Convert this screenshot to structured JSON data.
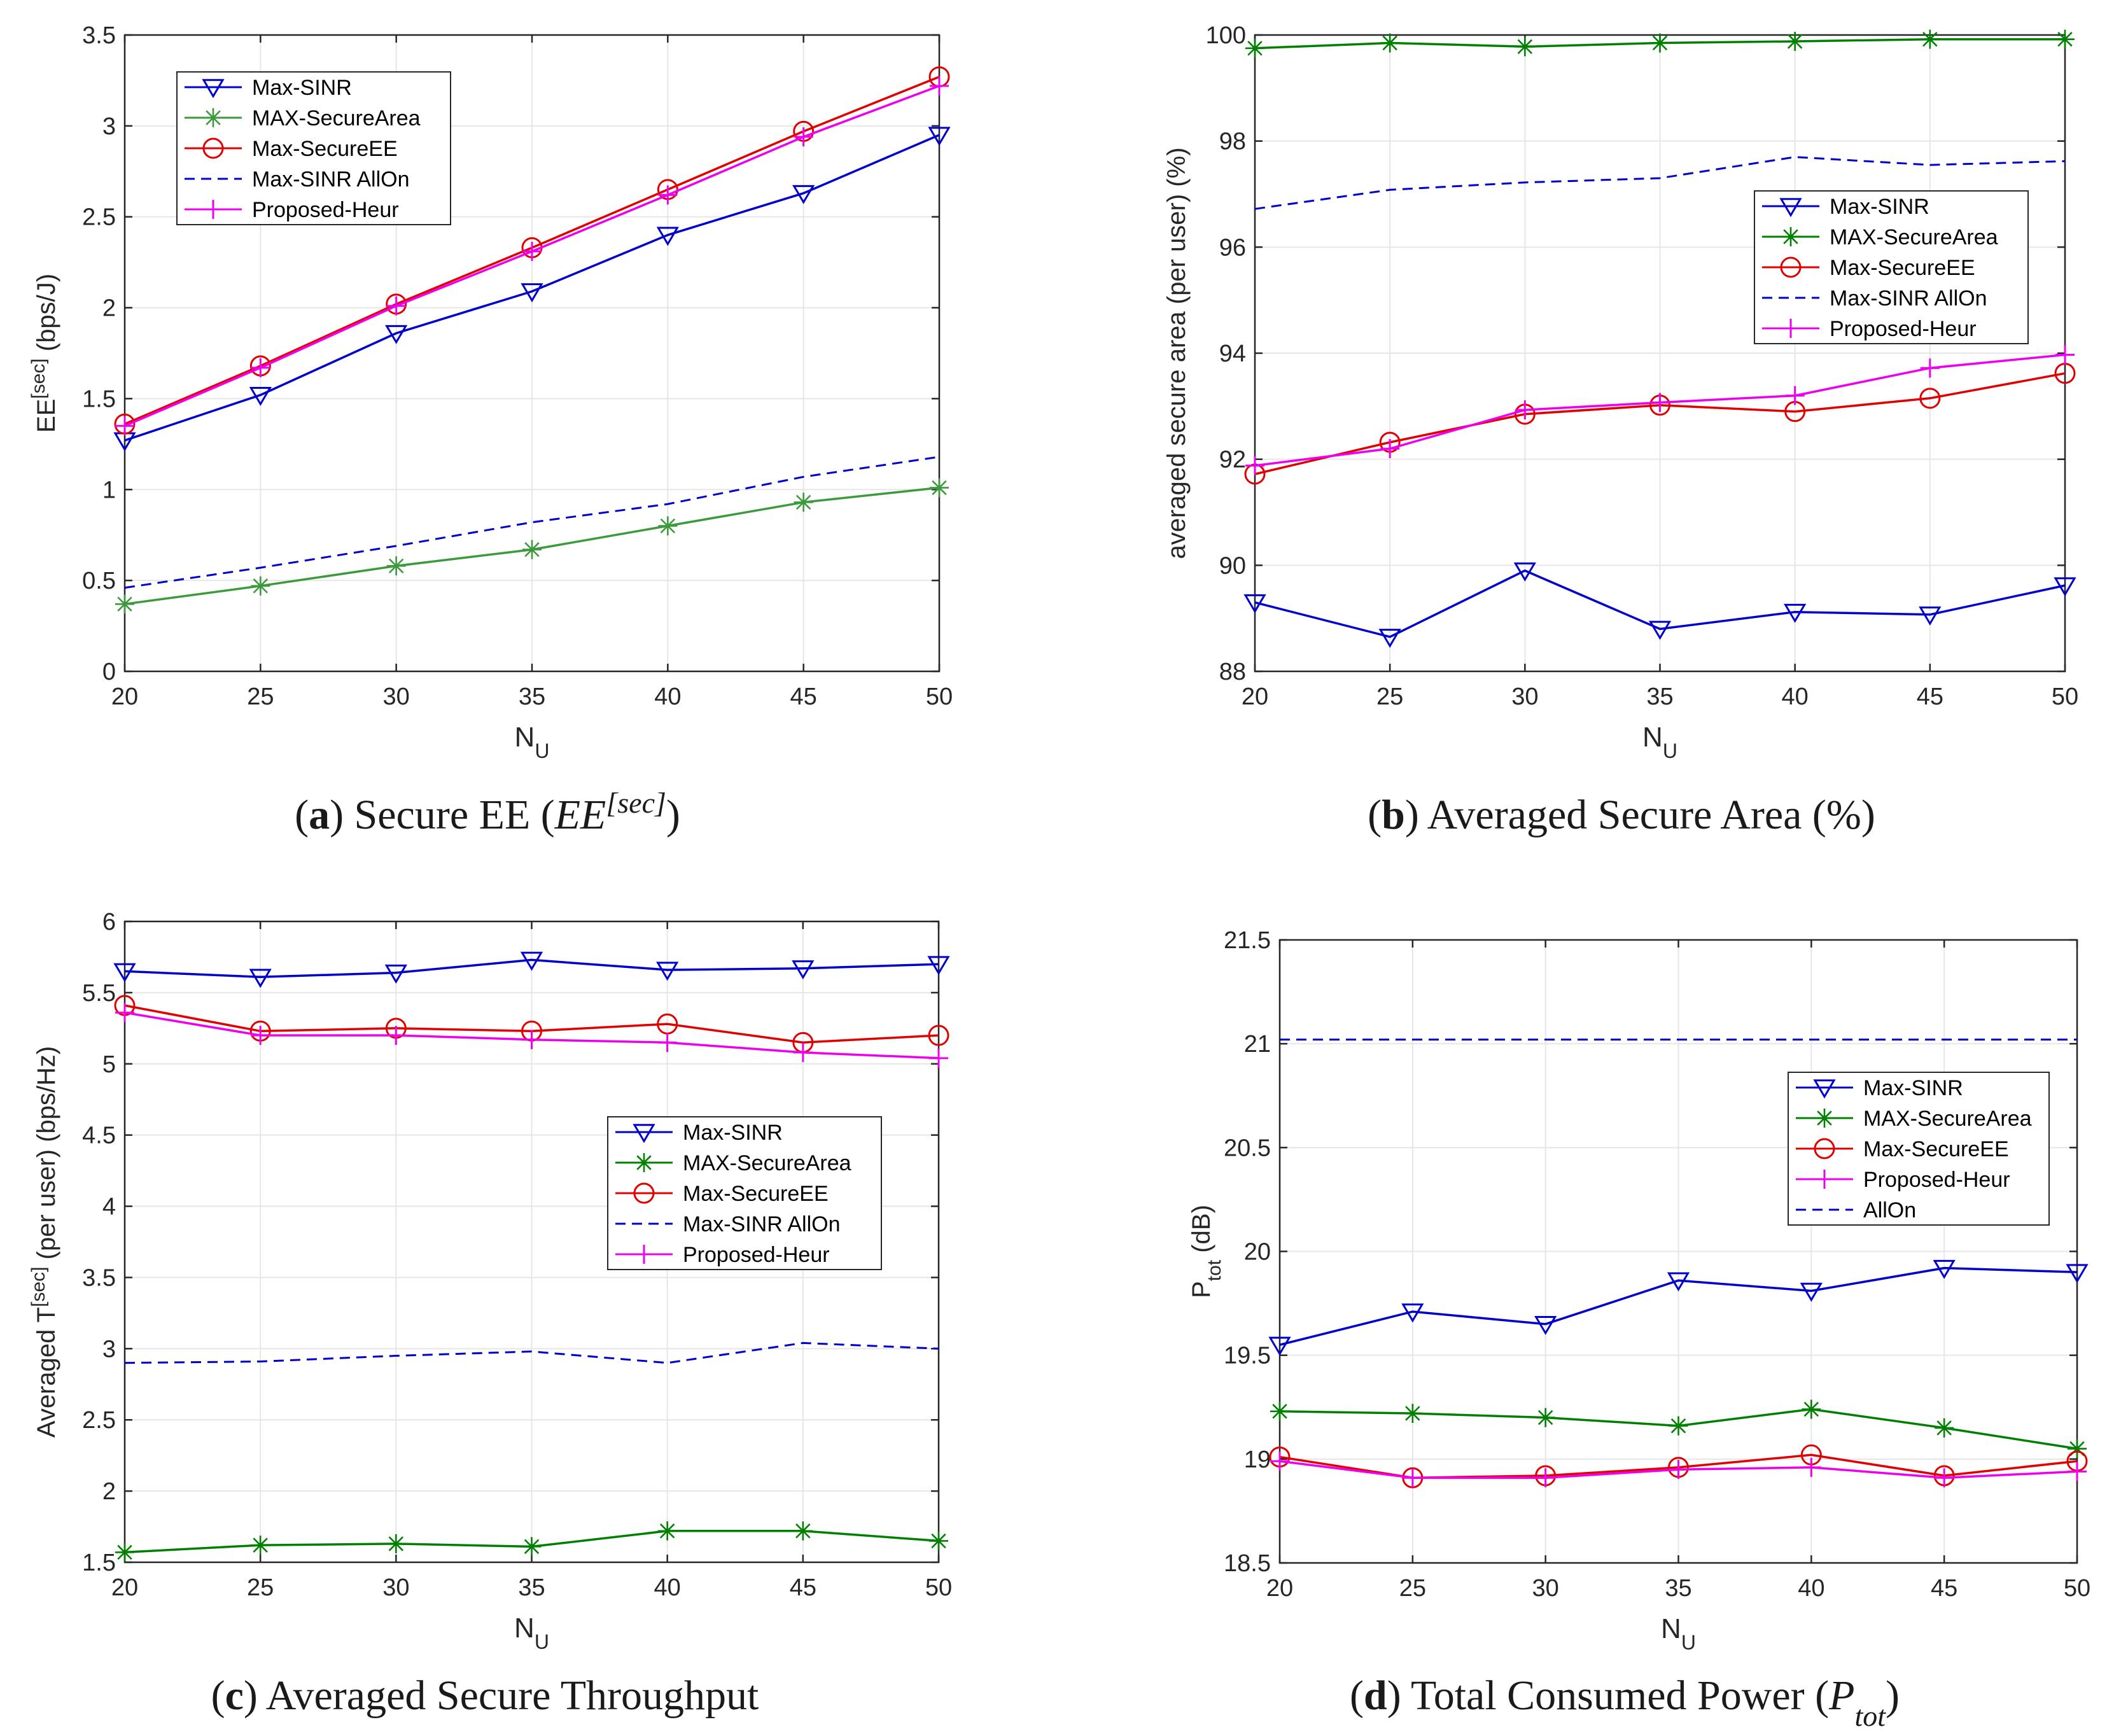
{
  "colors": {
    "blue": "#0000cc",
    "green": "#008000",
    "green_light": "#3c9a3c",
    "red": "#e00000",
    "magenta": "#ee00ee",
    "grid": "#e6e6e6",
    "axis": "#262626"
  },
  "chart_data": [
    {
      "id": "a",
      "type": "line",
      "caption": {
        "letter": "a",
        "text": "Secure EE (",
        "math_base": "EE",
        "math_sup": "[sec]",
        "close": ")"
      },
      "xlabel": "N",
      "xlabel_sub": "U",
      "ylabel": "EE",
      "ylabel_sup": "[sec]",
      "ylabel_rest": " (bps/J)",
      "x": [
        20,
        25,
        30,
        35,
        40,
        45,
        50
      ],
      "xlim": [
        20,
        50
      ],
      "ylim": [
        0,
        3.5
      ],
      "xticks": [
        "20",
        "25",
        "30",
        "35",
        "40",
        "45",
        "50"
      ],
      "yticks": [
        "0",
        "0.5",
        "1",
        "1.5",
        "2",
        "2.5",
        "3",
        "3.5"
      ],
      "ytick_values": [
        0,
        0.5,
        1,
        1.5,
        2,
        2.5,
        3,
        3.5
      ],
      "grid": true,
      "legend_position": "top-left",
      "series": [
        {
          "name": "Max-SINR",
          "color": "blue",
          "marker": "triangle-down",
          "dash": "solid",
          "values": [
            1.27,
            1.52,
            1.86,
            2.09,
            2.4,
            2.63,
            2.95
          ]
        },
        {
          "name": "MAX-SecureArea",
          "color": "green_light",
          "marker": "asterisk",
          "dash": "solid",
          "values": [
            0.37,
            0.47,
            0.58,
            0.67,
            0.8,
            0.93,
            1.01
          ]
        },
        {
          "name": "Max-SecureEE",
          "color": "red",
          "marker": "circle",
          "dash": "solid",
          "values": [
            1.36,
            1.68,
            2.02,
            2.33,
            2.65,
            2.97,
            3.27
          ]
        },
        {
          "name": "Max-SINR AllOn",
          "color": "blue",
          "marker": "none",
          "dash": "dashed",
          "values": [
            0.46,
            0.57,
            0.69,
            0.82,
            0.92,
            1.07,
            1.18
          ]
        },
        {
          "name": "Proposed-Heur",
          "color": "magenta",
          "marker": "plus",
          "dash": "solid",
          "values": [
            1.35,
            1.67,
            2.01,
            2.31,
            2.62,
            2.94,
            3.22
          ]
        }
      ]
    },
    {
      "id": "b",
      "type": "line",
      "caption": {
        "letter": "b",
        "text": "Averaged Secure Area (%)"
      },
      "xlabel": "N",
      "xlabel_sub": "U",
      "ylabel": "averaged secure area (per user) (%)",
      "x": [
        20,
        25,
        30,
        35,
        40,
        45,
        50
      ],
      "xlim": [
        20,
        50
      ],
      "ylim": [
        88,
        100
      ],
      "xticks": [
        "20",
        "25",
        "30",
        "35",
        "40",
        "45",
        "50"
      ],
      "yticks": [
        "88",
        "90",
        "92",
        "94",
        "96",
        "98",
        "100"
      ],
      "ytick_values": [
        88,
        90,
        92,
        94,
        96,
        98,
        100
      ],
      "grid": true,
      "legend_position": "middle-right",
      "series": [
        {
          "name": "Max-SINR",
          "color": "blue",
          "marker": "triangle-down",
          "dash": "solid",
          "values": [
            89.3,
            88.65,
            89.9,
            88.8,
            89.12,
            89.07,
            89.62
          ]
        },
        {
          "name": "MAX-SecureArea",
          "color": "green",
          "marker": "asterisk",
          "dash": "solid",
          "values": [
            99.75,
            99.85,
            99.78,
            99.85,
            99.88,
            99.92,
            99.92
          ]
        },
        {
          "name": "Max-SecureEE",
          "color": "red",
          "marker": "circle",
          "dash": "solid",
          "values": [
            91.72,
            92.32,
            92.85,
            93.02,
            92.9,
            93.15,
            93.62
          ]
        },
        {
          "name": "Max-SINR AllOn",
          "color": "blue",
          "marker": "none",
          "dash": "dashed",
          "values": [
            96.72,
            97.08,
            97.22,
            97.3,
            97.7,
            97.55,
            97.62
          ]
        },
        {
          "name": "Proposed-Heur",
          "color": "magenta",
          "marker": "plus",
          "dash": "solid",
          "values": [
            91.88,
            92.2,
            92.93,
            93.07,
            93.2,
            93.72,
            93.97
          ]
        }
      ]
    },
    {
      "id": "c",
      "type": "line",
      "caption": {
        "letter": "c",
        "text": "Averaged Secure Throughput"
      },
      "xlabel": "N",
      "xlabel_sub": "U",
      "ylabel": "Averaged T",
      "ylabel_sup": "[sec]",
      "ylabel_rest": " (per user) (bps/Hz)",
      "x": [
        20,
        25,
        30,
        35,
        40,
        45,
        50
      ],
      "xlim": [
        20,
        50
      ],
      "ylim": [
        1.5,
        6
      ],
      "xticks": [
        "20",
        "25",
        "30",
        "35",
        "40",
        "45",
        "50"
      ],
      "yticks": [
        "1.5",
        "2",
        "2.5",
        "3",
        "3.5",
        "4",
        "4.5",
        "5",
        "5.5",
        "6"
      ],
      "ytick_values": [
        1.5,
        2,
        2.5,
        3,
        3.5,
        4,
        4.5,
        5,
        5.5,
        6
      ],
      "grid": true,
      "legend_position": "middle-right",
      "series": [
        {
          "name": "Max-SINR",
          "color": "blue",
          "marker": "triangle-down",
          "dash": "solid",
          "values": [
            5.65,
            5.61,
            5.64,
            5.73,
            5.66,
            5.67,
            5.7
          ]
        },
        {
          "name": "MAX-SecureArea",
          "color": "green",
          "marker": "asterisk",
          "dash": "solid",
          "values": [
            1.57,
            1.62,
            1.63,
            1.61,
            1.72,
            1.72,
            1.65
          ]
        },
        {
          "name": "Max-SecureEE",
          "color": "red",
          "marker": "circle",
          "dash": "solid",
          "values": [
            5.41,
            5.23,
            5.25,
            5.23,
            5.28,
            5.15,
            5.2
          ]
        },
        {
          "name": "Max-SINR AllOn",
          "color": "blue",
          "marker": "none",
          "dash": "dashed",
          "values": [
            2.9,
            2.91,
            2.95,
            2.98,
            2.9,
            3.04,
            3.0
          ]
        },
        {
          "name": "Proposed-Heur",
          "color": "magenta",
          "marker": "plus",
          "dash": "solid",
          "values": [
            5.36,
            5.2,
            5.2,
            5.17,
            5.15,
            5.08,
            5.04
          ]
        }
      ]
    },
    {
      "id": "d",
      "type": "line",
      "caption": {
        "letter": "d",
        "text": "Total Consumed Power (",
        "math_base": "P",
        "math_sub": "tot",
        "close": ")"
      },
      "xlabel": "N",
      "xlabel_sub": "U",
      "ylabel": "P",
      "ylabel_sub": "tot",
      "ylabel_rest": " (dB)",
      "x": [
        20,
        25,
        30,
        35,
        40,
        45,
        50
      ],
      "xlim": [
        20,
        50
      ],
      "ylim": [
        18.5,
        21.5
      ],
      "xticks": [
        "20",
        "25",
        "30",
        "35",
        "40",
        "45",
        "50"
      ],
      "yticks": [
        "18.5",
        "19",
        "19.5",
        "20",
        "20.5",
        "21",
        "21.5"
      ],
      "ytick_values": [
        18.5,
        19,
        19.5,
        20,
        20.5,
        21,
        21.5
      ],
      "grid": true,
      "legend_position": "top-right",
      "series": [
        {
          "name": "Max-SINR",
          "color": "blue",
          "marker": "triangle-down",
          "dash": "solid",
          "values": [
            19.55,
            19.71,
            19.65,
            19.86,
            19.81,
            19.92,
            19.9
          ]
        },
        {
          "name": "MAX-SecureArea",
          "color": "green",
          "marker": "asterisk",
          "dash": "solid",
          "values": [
            19.23,
            19.22,
            19.2,
            19.16,
            19.24,
            19.15,
            19.05
          ]
        },
        {
          "name": "Max-SecureEE",
          "color": "red",
          "marker": "circle",
          "dash": "solid",
          "values": [
            19.01,
            18.91,
            18.92,
            18.96,
            19.02,
            18.92,
            18.99
          ]
        },
        {
          "name": "Proposed-Heur",
          "color": "magenta",
          "marker": "plus",
          "dash": "solid",
          "values": [
            18.99,
            18.91,
            18.91,
            18.95,
            18.96,
            18.91,
            18.94
          ]
        },
        {
          "name": "AllOn",
          "color": "blue",
          "marker": "none",
          "dash": "dashed",
          "values": [
            21.02,
            21.02,
            21.02,
            21.02,
            21.02,
            21.02,
            21.02
          ]
        }
      ]
    }
  ]
}
